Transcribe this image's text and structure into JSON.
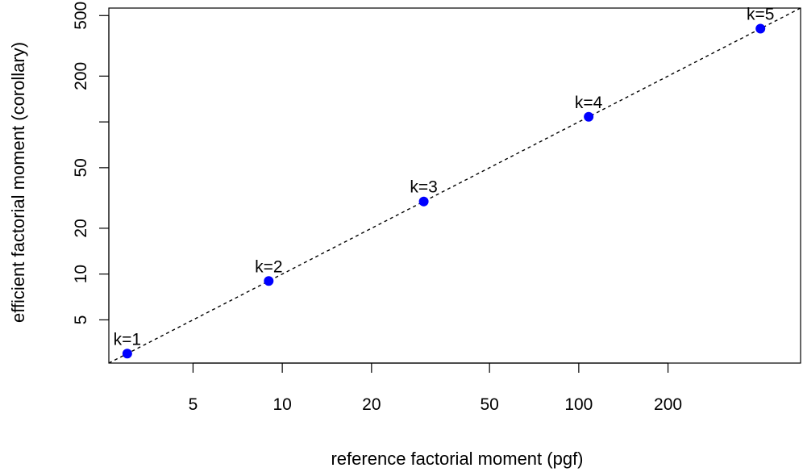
{
  "chart_data": {
    "type": "scatter",
    "xlabel": "reference factorial moment (pgf)",
    "ylabel": "efficient factorial moment (corollary)",
    "x_scale": "log",
    "y_scale": "log",
    "xlim": [
      2.6,
      560
    ],
    "ylim": [
      2.6,
      560
    ],
    "x_ticks": [
      5,
      10,
      20,
      50,
      100,
      200
    ],
    "x_tick_labels": [
      "5",
      "10",
      "20",
      "50",
      "100",
      "200"
    ],
    "y_ticks": [
      5,
      10,
      20,
      50,
      200,
      500
    ],
    "y_tick_labels": [
      "5",
      "10",
      "20",
      "50",
      "200",
      "500"
    ],
    "y_unlabeled_ticks": [
      100
    ],
    "grid": false,
    "series": [
      {
        "points": [
          {
            "x": 3,
            "y": 3,
            "label": "k=1"
          },
          {
            "x": 9,
            "y": 9,
            "label": "k=2"
          },
          {
            "x": 30,
            "y": 30,
            "label": "k=3"
          },
          {
            "x": 108,
            "y": 108,
            "label": "k=4"
          },
          {
            "x": 410,
            "y": 410,
            "label": "k=5"
          }
        ],
        "color": "#0000ff"
      }
    ],
    "reference_line": {
      "type": "y = x",
      "style": "dashed",
      "color": "#000000"
    }
  }
}
